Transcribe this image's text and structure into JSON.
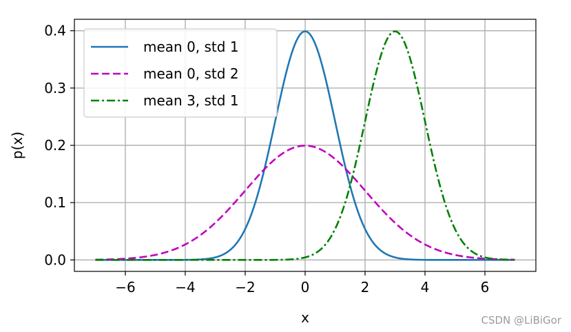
{
  "chart_data": {
    "type": "line",
    "xlabel": "x",
    "ylabel": "p(x)",
    "xlim": [
      -7.7,
      7.7
    ],
    "ylim": [
      -0.02,
      0.42
    ],
    "xticks": [
      -6,
      -4,
      -2,
      0,
      2,
      4,
      6
    ],
    "xtick_labels": [
      "−6",
      "−4",
      "−2",
      "0",
      "2",
      "4",
      "6"
    ],
    "yticks": [
      0.0,
      0.1,
      0.2,
      0.3,
      0.4
    ],
    "ytick_labels": [
      "0.0",
      "0.1",
      "0.2",
      "0.3",
      "0.4"
    ],
    "grid": true,
    "legend_position": "top-left",
    "x_range": [
      -7,
      7
    ],
    "series": [
      {
        "name": "mean 0, std 1",
        "mean": 0,
        "std": 1,
        "color": "#1f77b4",
        "style": "solid"
      },
      {
        "name": "mean 0, std 2",
        "mean": 0,
        "std": 2,
        "color": "#bf00bf",
        "style": "dashed"
      },
      {
        "name": "mean 3, std 1",
        "mean": 3,
        "std": 1,
        "color": "#008000",
        "style": "dashdot"
      }
    ]
  },
  "watermark": "CSDN @LiBiGor"
}
